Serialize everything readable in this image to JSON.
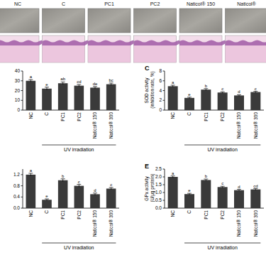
{
  "image_panel": {
    "labels": [
      "NC",
      "C",
      "PC1",
      "PC2",
      "Naticol® 150",
      "Naticol®"
    ]
  },
  "chart_data": [
    {
      "type": "bar",
      "categories": [
        "NC",
        "C",
        "PC1",
        "PC2",
        "Naticol® 150",
        "Naticol® 300"
      ],
      "values": [
        30,
        22,
        27.5,
        25,
        23,
        26.5
      ],
      "errors": [
        1.2,
        1.5,
        1.3,
        1.2,
        1.1,
        1.2
      ],
      "annotations": [
        "a",
        "e",
        "ab",
        "cd",
        "de",
        "bc"
      ],
      "color": "#3a3a3a",
      "ylim": [
        0,
        40
      ],
      "yticks": [
        0,
        10,
        20,
        30,
        40
      ],
      "xlabel": "UV irradiation"
    },
    {
      "type": "bar",
      "title": "C",
      "ylabel": "SOD activity (inhibition rate, %)",
      "categories": [
        "NC",
        "C",
        "PC1",
        "PC2",
        "Naticol® 150",
        "Naticol® 300"
      ],
      "values": [
        4.9,
        2.5,
        4.2,
        3.6,
        3.0,
        3.7
      ],
      "errors": [
        0.2,
        0.15,
        0.2,
        0.15,
        0.15,
        0.15
      ],
      "annotations": [
        "a",
        "e",
        "b",
        "c",
        "d",
        "c"
      ],
      "color": "#3a3a3a",
      "ylim": [
        0,
        8
      ],
      "yticks": [
        0,
        2,
        4,
        6,
        8
      ],
      "xlabel": "UV irradiation"
    },
    {
      "type": "bar",
      "categories": [
        "NC",
        "C",
        "PC1",
        "PC2",
        "Naticol® 150",
        "Naticol® 300"
      ],
      "values": [
        1.2,
        0.3,
        1.0,
        0.8,
        0.5,
        0.7
      ],
      "errors": [
        0.05,
        0.03,
        0.05,
        0.05,
        0.04,
        0.04
      ],
      "annotations": [
        "a",
        "e",
        "b",
        "c",
        "d",
        "c"
      ],
      "color": "#3a3a3a",
      "ylim": [
        0,
        1.4
      ],
      "yticks": [
        {
          "value": 0,
          "label": "0.0"
        },
        {
          "value": 0.4,
          "label": "0.4"
        },
        {
          "value": 0.8,
          "label": "0.8"
        },
        {
          "value": 1.2,
          "label": "1.2"
        }
      ],
      "xlabel": "UV irradiation"
    },
    {
      "type": "bar",
      "title": "E",
      "ylabel": "GPx activity (U/μg protein)",
      "categories": [
        "NC",
        "C",
        "PC1",
        "PC2",
        "Naticol® 150",
        "Naticol® 300"
      ],
      "values": [
        2.0,
        0.9,
        1.8,
        1.35,
        1.15,
        1.2
      ],
      "errors": [
        0.06,
        0.05,
        0.06,
        0.05,
        0.05,
        0.05
      ],
      "annotations": [
        "a",
        "e",
        "b",
        "c",
        "d",
        "cd"
      ],
      "color": "#3a3a3a",
      "ylim": [
        0,
        2.5
      ],
      "yticks": [
        {
          "value": 0,
          "label": "0.0"
        },
        {
          "value": 0.5,
          "label": "0.5"
        },
        {
          "value": 1,
          "label": "1.0"
        },
        {
          "value": 1.5,
          "label": "1.5"
        },
        {
          "value": 2,
          "label": "2.0"
        },
        {
          "value": 2.5,
          "label": "2.5"
        }
      ],
      "xlabel": "UV irradiation"
    }
  ]
}
